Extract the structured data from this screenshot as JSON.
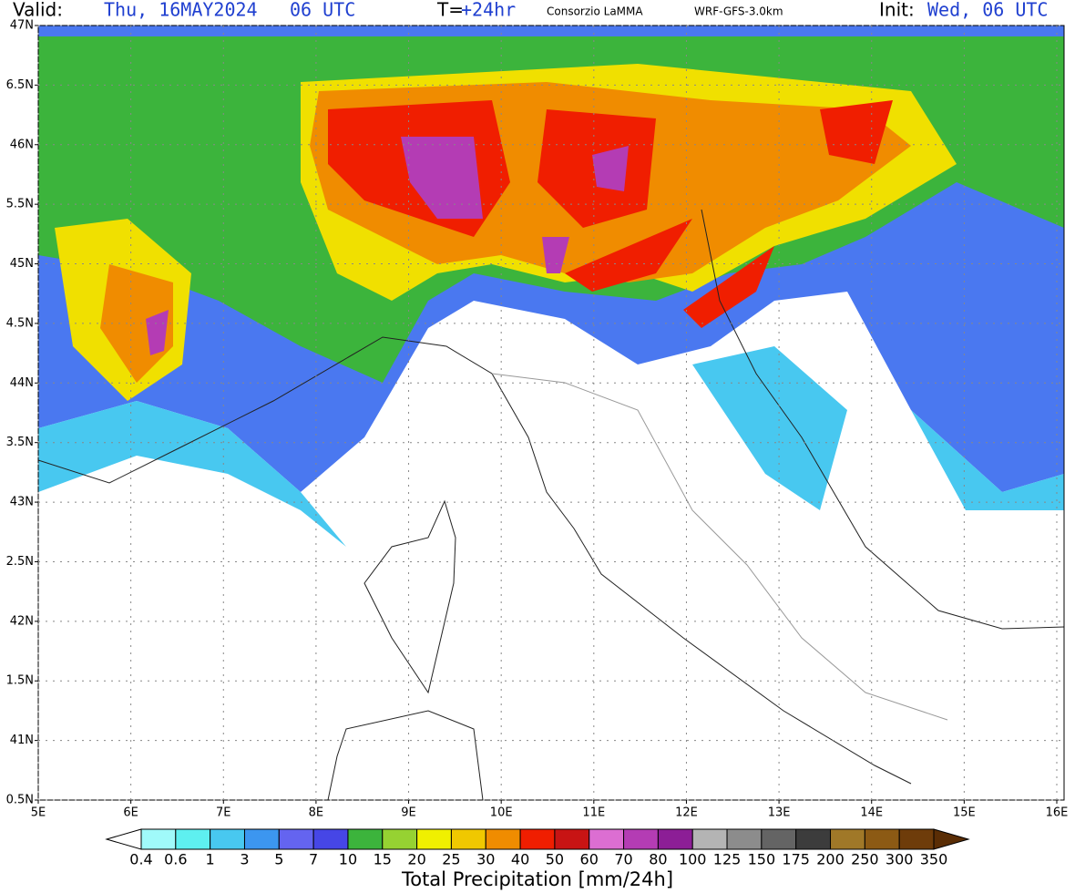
{
  "header": {
    "valid_label": "Valid:",
    "valid_date": "Thu, 16MAY2024",
    "valid_time": "06 UTC",
    "lead_label": "T=",
    "lead_value": "+24hr",
    "source": "Consorzio LaMMA",
    "model": "WRF-GFS-3.0km",
    "init_label": "Init:",
    "init_value": "Wed, 06 UTC"
  },
  "map": {
    "lat_labels": [
      "47N",
      "6.5N",
      "46N",
      "5.5N",
      "45N",
      "4.5N",
      "44N",
      "3.5N",
      "43N",
      "2.5N",
      "42N",
      "1.5N",
      "41N",
      "0.5N"
    ],
    "lon_labels": [
      "5E",
      "6E",
      "7E",
      "8E",
      "9E",
      "10E",
      "11E",
      "12E",
      "13E",
      "14E",
      "15E",
      "16E"
    ],
    "colorbar": {
      "title": "Total Precipitation [mm/24h]",
      "levels": [
        "0.4",
        "0.6",
        "1",
        "3",
        "5",
        "7",
        "10",
        "15",
        "20",
        "25",
        "30",
        "40",
        "50",
        "60",
        "70",
        "80",
        "100",
        "125",
        "150",
        "175",
        "200",
        "250",
        "300",
        "350"
      ],
      "colors": [
        "#ffffff",
        "#a0fafa",
        "#5ef0f0",
        "#48c8f0",
        "#3c96f0",
        "#6464f0",
        "#4646e6",
        "#3cb43c",
        "#96d232",
        "#f0f000",
        "#f0c800",
        "#f08c00",
        "#f01e00",
        "#c81414",
        "#dc6ed2",
        "#b43cb4",
        "#8c1e96",
        "#b4b4b4",
        "#8c8c8c",
        "#646464",
        "#3c3c3c",
        "#a07828",
        "#8c5a14",
        "#6e3c0a",
        "#5a2d05"
      ]
    }
  }
}
